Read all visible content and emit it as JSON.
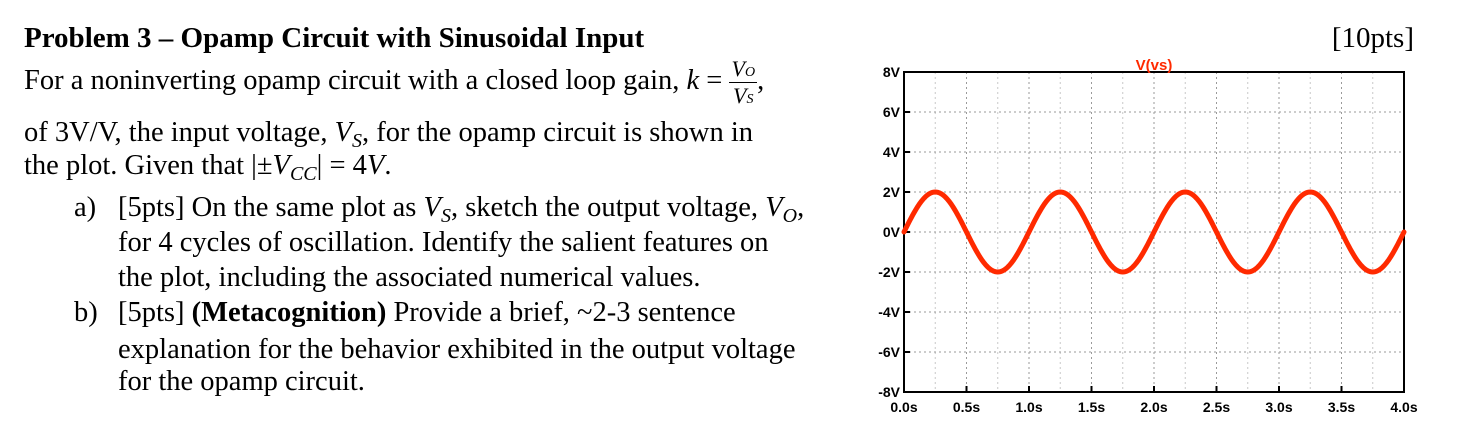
{
  "problem": {
    "title": "Problem 3 – Opamp Circuit with Sinusoidal Input",
    "points": "[10pts]",
    "intro": {
      "line1_text": "For a noninverting opamp circuit with a closed loop gain, ",
      "line1_k": "k",
      "eq": "=",
      "frac_num": "V",
      "frac_num_sub": "O",
      "frac_den": "V",
      "frac_den_sub": "S",
      "line1_comma": ",",
      "line2_a": "of 3V/V, the input voltage, ",
      "line2_v": "V",
      "line2_sub": "S",
      "line2_b": ", for the opamp circuit is shown in",
      "line3_a": "the plot. Given that |±",
      "line3_v": "V",
      "line3_sub": "CC",
      "line3_b": "| = 4",
      "line3_vend": "V",
      "line3_end": "."
    },
    "part_a": {
      "label": "a)",
      "line1_a": "[5pts] On the same plot as ",
      "line1_v": "V",
      "line1_sub": "S",
      "line1_b": ", sketch the output voltage, ",
      "line1_vo": "V",
      "line1_vo_sub": "O",
      "line1_end": ",",
      "line2": "for 4 cycles of oscillation. Identify the salient features on",
      "line3": "the plot, including the associated numerical values."
    },
    "part_b": {
      "label": "b)",
      "line1_a": "[5pts] ",
      "line1_bold": "(Metacognition)",
      "line1_b": " Provide a brief, ~2-3 sentence",
      "line2": "explanation for the behavior exhibited in the output voltage",
      "line3": "for the opamp circuit."
    }
  },
  "chart_data": {
    "type": "line",
    "title": "V(vs)",
    "xlabel": "",
    "ylabel": "",
    "x_ticks": [
      "0.0s",
      "0.5s",
      "1.0s",
      "1.5s",
      "2.0s",
      "2.5s",
      "3.0s",
      "3.5s",
      "4.0s"
    ],
    "y_ticks": [
      "8V",
      "6V",
      "4V",
      "2V",
      "0V",
      "-2V",
      "-4V",
      "-6V",
      "-8V"
    ],
    "xlim": [
      0,
      4
    ],
    "ylim": [
      -8,
      8
    ],
    "grid": true,
    "series": [
      {
        "name": "V(vs)",
        "color": "#ff2a00",
        "function": "2*sin(2*pi*1*t)",
        "amplitude": 2,
        "frequency_hz": 1,
        "x": [
          0,
          0.25,
          0.5,
          0.75,
          1.0,
          1.25,
          1.5,
          1.75,
          2.0,
          2.25,
          2.5,
          2.75,
          3.0,
          3.25,
          3.5,
          3.75,
          4.0
        ],
        "values": [
          0,
          2,
          0,
          -2,
          0,
          2,
          0,
          -2,
          0,
          2,
          0,
          -2,
          0,
          2,
          0,
          -2,
          0
        ]
      }
    ]
  }
}
